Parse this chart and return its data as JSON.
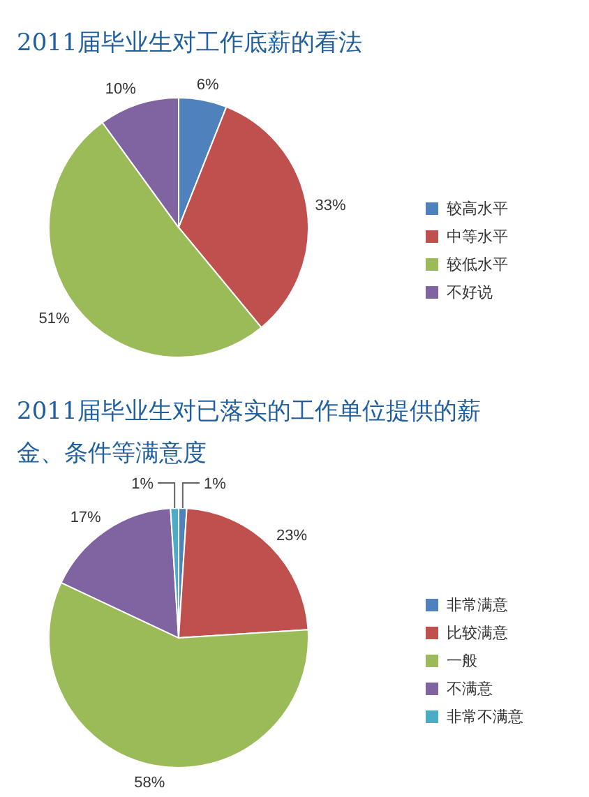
{
  "chart_data": [
    {
      "type": "pie",
      "title": "2011届毕业生对工作底薪的看法",
      "categories": [
        "较高水平",
        "中等水平",
        "较低水平",
        "不好说"
      ],
      "values": [
        6,
        33,
        51,
        10
      ],
      "value_labels": [
        "6%",
        "33%",
        "51%",
        "10%"
      ],
      "colors": [
        "#4f81bd",
        "#c0504d",
        "#9bbb59",
        "#8064a2"
      ],
      "legend": "right"
    },
    {
      "type": "pie",
      "title": "2011届毕业生对已落实的工作单位提供的薪金、条件等满意度",
      "categories": [
        "非常满意",
        "比较满意",
        "一般",
        "不满意",
        "非常不满意"
      ],
      "values": [
        1,
        23,
        58,
        17,
        1
      ],
      "value_labels": [
        "1%",
        "23%",
        "58%",
        "17%",
        "1%"
      ],
      "colors": [
        "#4f81bd",
        "#c0504d",
        "#9bbb59",
        "#8064a2",
        "#4bacc6"
      ],
      "legend": "right"
    }
  ]
}
